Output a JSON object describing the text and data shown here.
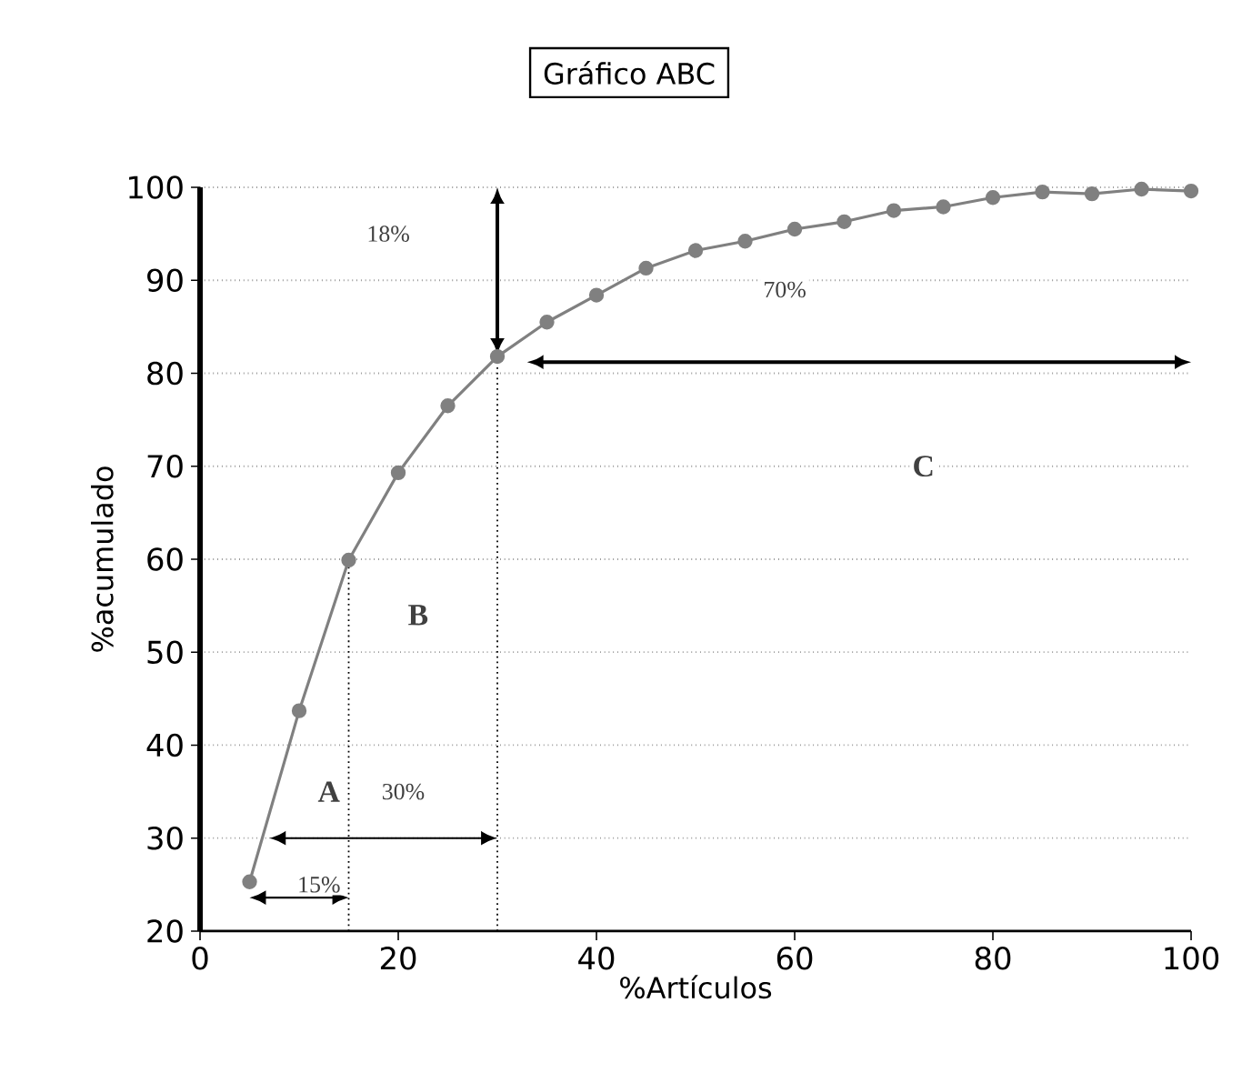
{
  "chart_data": {
    "type": "line",
    "title": "Gráfico ABC",
    "xlabel": "%Artículos",
    "ylabel": "%acumulado",
    "xlim": [
      0,
      100
    ],
    "ylim": [
      20,
      100
    ],
    "xticks": [
      0,
      20,
      40,
      60,
      80,
      100
    ],
    "yticks": [
      20,
      30,
      40,
      50,
      60,
      70,
      80,
      90,
      100
    ],
    "grid": "y",
    "marker": "circle",
    "line_style": "solid",
    "series": [
      {
        "color": "#808080",
        "x": [
          5,
          10,
          15,
          20,
          25,
          30,
          35,
          40,
          45,
          50,
          55,
          60,
          65,
          70,
          75,
          80,
          85,
          90,
          95,
          100
        ],
        "values": [
          25.3,
          43.7,
          59.9,
          69.3,
          76.5,
          81.8,
          85.5,
          88.4,
          91.3,
          93.2,
          94.2,
          95.5,
          96.3,
          97.5,
          97.9,
          98.9,
          99.5,
          99.3,
          99.8,
          99.6
        ]
      }
    ],
    "ref_lines": [
      {
        "axis": "x",
        "value": 15,
        "line_style": "dotted"
      },
      {
        "axis": "x",
        "value": 30,
        "line_style": "dotted"
      }
    ],
    "annotations": [
      {
        "text": "15%",
        "x": 12,
        "y": 25
      },
      {
        "text": "30%",
        "x": 20.5,
        "y": 35
      },
      {
        "text": "A",
        "x": 13,
        "y": 35
      },
      {
        "text": "B",
        "x": 22,
        "y": 54
      },
      {
        "text": "70%",
        "x": 59,
        "y": 89
      },
      {
        "text": "C",
        "x": 73,
        "y": 70
      },
      {
        "text": "18%",
        "x": 19,
        "y": 95
      }
    ]
  }
}
